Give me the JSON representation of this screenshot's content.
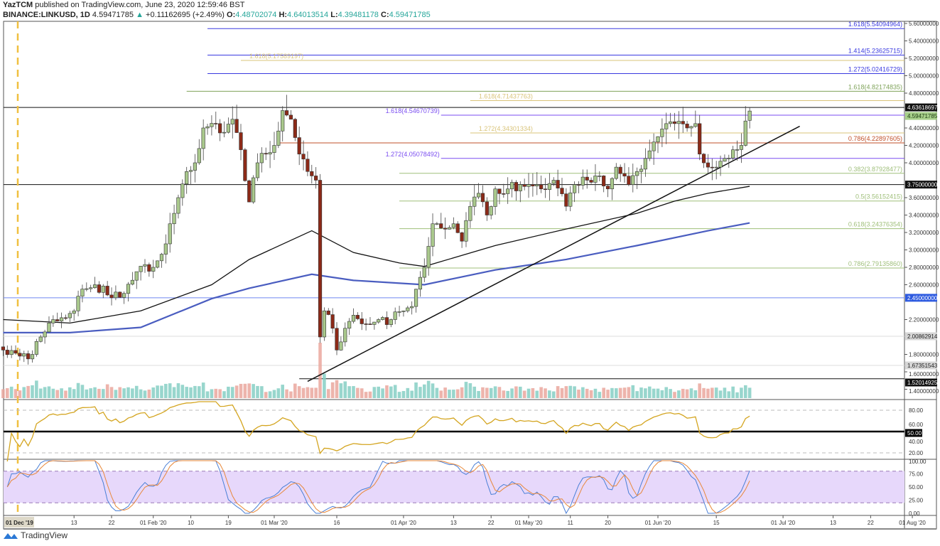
{
  "header": {
    "author": "YazTCM",
    "published": "published on TradingView.com, June 23, 2020 12:59:46 BST",
    "symbol": "BINANCE:LINKUSD, 1D",
    "last": "4.59471785",
    "change": "+0.11162695 (+2.49%)",
    "o_label": "O:",
    "o": "4.48702074",
    "h_label": "H:",
    "h": "4.64013514",
    "l_label": "L:",
    "l": "4.39481178",
    "c_label": "C:",
    "c": "4.59471785"
  },
  "footer": {
    "brand": "TradingView",
    "logo_icon": "tradingview-logo-icon"
  },
  "colors": {
    "up": "#a9c88c",
    "down": "#8c2a18",
    "vol_up": "#86cfc4",
    "vol_down": "#eaa79e",
    "ma100": "#111111",
    "ma200": "#4a5dc0",
    "rsi": "#d4a520",
    "stoch_k": "#4a7fd6",
    "stoch_d": "#e8883a",
    "stoch_band": "#e7d8fb"
  },
  "chart_data": {
    "type": "candlestick",
    "title": "",
    "ylim": [
      1.3,
      5.65
    ],
    "price_ticks": [
      "5.60000000",
      "5.40000000",
      "5.20000000",
      "5.00000000",
      "4.80000000",
      "4.40000000",
      "4.20000000",
      "4.00000000",
      "3.60000000",
      "3.40000000",
      "3.20000000",
      "3.00000000",
      "2.80000000",
      "2.60000000",
      "2.20000000",
      "1.80000000",
      "1.60000000",
      "1.40000000"
    ],
    "price_labels": [
      {
        "value": 4.63618697,
        "text": "4.63618697",
        "bg": "#111111",
        "fg": "#ffffff"
      },
      {
        "value": 4.59471785,
        "text": "4.59471785",
        "bg": "#a7cf8a",
        "fg": "#1b3a10"
      },
      {
        "value": 3.75,
        "text": "3.75000000",
        "bg": "#111111",
        "fg": "#ffffff"
      },
      {
        "value": 2.45,
        "text": "2.45000000",
        "bg": "#2e5be0",
        "fg": "#ffffff"
      },
      {
        "value": 2.00862914,
        "text": "2.00862914",
        "bg": "#d6d6d6",
        "fg": "#222222"
      },
      {
        "value": 1.67351543,
        "text": "1.67351543",
        "bg": "#d6d6d6",
        "fg": "#222222"
      },
      {
        "value": 1.52014925,
        "text": "1.52014925",
        "bg": "#111111",
        "fg": "#ffffff"
      }
    ],
    "time_ticks": [
      {
        "date": "2020-01-13",
        "label": "13"
      },
      {
        "date": "2020-01-22",
        "label": "22"
      },
      {
        "date": "2020-02-01",
        "label": "01 Feb '20"
      },
      {
        "date": "2020-02-10",
        "label": "10"
      },
      {
        "date": "2020-02-19",
        "label": "19"
      },
      {
        "date": "2020-03-01",
        "label": "01 Mar '20"
      },
      {
        "date": "2020-03-16",
        "label": "16"
      },
      {
        "date": "2020-04-01",
        "label": "01 Apr '20"
      },
      {
        "date": "2020-04-13",
        "label": "13"
      },
      {
        "date": "2020-04-22",
        "label": "22"
      },
      {
        "date": "2020-05-01",
        "label": "01 May '20"
      },
      {
        "date": "2020-05-11",
        "label": "11"
      },
      {
        "date": "2020-05-20",
        "label": "20"
      },
      {
        "date": "2020-06-01",
        "label": "01 Jun '20"
      },
      {
        "date": "2020-06-15",
        "label": "15"
      },
      {
        "date": "2020-07-01",
        "label": "01 Jul '20"
      },
      {
        "date": "2020-07-13",
        "label": "13"
      },
      {
        "date": "2020-07-22",
        "label": "22"
      },
      {
        "date": "2020-08-01",
        "label": "01 Aug '20"
      }
    ],
    "cursor_label": "01 Dec '19",
    "closes": [
      [
        "2019-12-27",
        1.85
      ],
      [
        "2019-12-31",
        1.78
      ],
      [
        "2020-01-03",
        1.8
      ],
      [
        "2020-01-05",
        2.0
      ],
      [
        "2020-01-08",
        2.2
      ],
      [
        "2020-01-13",
        2.3
      ],
      [
        "2020-01-15",
        2.55
      ],
      [
        "2020-01-18",
        2.6
      ],
      [
        "2020-01-22",
        2.45
      ],
      [
        "2020-01-25",
        2.5
      ],
      [
        "2020-01-28",
        2.75
      ],
      [
        "2020-02-01",
        2.8
      ],
      [
        "2020-02-03",
        2.95
      ],
      [
        "2020-02-05",
        3.3
      ],
      [
        "2020-02-07",
        3.6
      ],
      [
        "2020-02-09",
        3.9
      ],
      [
        "2020-02-11",
        4.0
      ],
      [
        "2020-02-13",
        4.4
      ],
      [
        "2020-02-16",
        4.45
      ],
      [
        "2020-02-18",
        4.35
      ],
      [
        "2020-02-20",
        4.5
      ],
      [
        "2020-02-22",
        4.15
      ],
      [
        "2020-02-24",
        3.55
      ],
      [
        "2020-02-26",
        4.0
      ],
      [
        "2020-02-28",
        4.1
      ],
      [
        "2020-03-01",
        4.2
      ],
      [
        "2020-03-03",
        4.6
      ],
      [
        "2020-03-05",
        4.5
      ],
      [
        "2020-03-07",
        4.1
      ],
      [
        "2020-03-09",
        3.9
      ],
      [
        "2020-03-11",
        3.8
      ],
      [
        "2020-03-12",
        2.0
      ],
      [
        "2020-03-13",
        2.3
      ],
      [
        "2020-03-15",
        2.1
      ],
      [
        "2020-03-16",
        1.85
      ],
      [
        "2020-03-18",
        2.1
      ],
      [
        "2020-03-20",
        2.25
      ],
      [
        "2020-03-23",
        2.15
      ],
      [
        "2020-03-26",
        2.2
      ],
      [
        "2020-03-29",
        2.2
      ],
      [
        "2020-04-01",
        2.3
      ],
      [
        "2020-04-03",
        2.35
      ],
      [
        "2020-04-06",
        2.8
      ],
      [
        "2020-04-08",
        3.3
      ],
      [
        "2020-04-10",
        3.25
      ],
      [
        "2020-04-13",
        3.3
      ],
      [
        "2020-04-15",
        3.1
      ],
      [
        "2020-04-17",
        3.5
      ],
      [
        "2020-04-19",
        3.65
      ],
      [
        "2020-04-21",
        3.4
      ],
      [
        "2020-04-23",
        3.7
      ],
      [
        "2020-04-26",
        3.7
      ],
      [
        "2020-04-29",
        3.75
      ],
      [
        "2020-05-01",
        3.75
      ],
      [
        "2020-05-04",
        3.7
      ],
      [
        "2020-05-07",
        3.8
      ],
      [
        "2020-05-10",
        3.5
      ],
      [
        "2020-05-12",
        3.75
      ],
      [
        "2020-05-15",
        3.8
      ],
      [
        "2020-05-18",
        3.85
      ],
      [
        "2020-05-20",
        3.7
      ],
      [
        "2020-05-22",
        3.95
      ],
      [
        "2020-05-25",
        3.75
      ],
      [
        "2020-05-27",
        3.9
      ],
      [
        "2020-05-29",
        4.05
      ],
      [
        "2020-06-01",
        4.3
      ],
      [
        "2020-06-03",
        4.45
      ],
      [
        "2020-06-05",
        4.45
      ],
      [
        "2020-06-08",
        4.4
      ],
      [
        "2020-06-10",
        4.45
      ],
      [
        "2020-06-11",
        4.1
      ],
      [
        "2020-06-13",
        3.95
      ],
      [
        "2020-06-15",
        3.95
      ],
      [
        "2020-06-17",
        4.05
      ],
      [
        "2020-06-19",
        4.15
      ],
      [
        "2020-06-21",
        4.2
      ],
      [
        "2020-06-22",
        4.48
      ],
      [
        "2020-06-23",
        4.59471785
      ]
    ],
    "ma100": [
      [
        "2019-12-27",
        2.2
      ],
      [
        "2020-01-12",
        2.16
      ],
      [
        "2020-01-29",
        2.3
      ],
      [
        "2020-02-15",
        2.6
      ],
      [
        "2020-02-24",
        2.89
      ],
      [
        "2020-03-10",
        3.22
      ],
      [
        "2020-03-20",
        2.97
      ],
      [
        "2020-03-31",
        2.85
      ],
      [
        "2020-04-06",
        2.81
      ],
      [
        "2020-04-23",
        3.05
      ],
      [
        "2020-05-10",
        3.24
      ],
      [
        "2020-05-27",
        3.42
      ],
      [
        "2020-06-05",
        3.56
      ],
      [
        "2020-06-13",
        3.65
      ],
      [
        "2020-06-23",
        3.73
      ]
    ],
    "ma200": [
      [
        "2019-12-27",
        2.05
      ],
      [
        "2020-01-12",
        2.05
      ],
      [
        "2020-01-29",
        2.11
      ],
      [
        "2020-02-15",
        2.44
      ],
      [
        "2020-02-24",
        2.56
      ],
      [
        "2020-03-10",
        2.72
      ],
      [
        "2020-03-20",
        2.65
      ],
      [
        "2020-04-06",
        2.6
      ],
      [
        "2020-04-23",
        2.77
      ],
      [
        "2020-05-10",
        2.89
      ],
      [
        "2020-05-27",
        3.05
      ],
      [
        "2020-06-13",
        3.22
      ],
      [
        "2020-06-23",
        3.31
      ]
    ],
    "trendline": [
      [
        "2020-03-09",
        1.49
      ],
      [
        "2020-07-05",
        4.42
      ]
    ],
    "fib_levels": [
      {
        "value": 5.54094964,
        "text": "1.618(5.54094964)",
        "from": "2020-02-14",
        "color": "#3a3ae0",
        "label_at": "right"
      },
      {
        "value": 5.23625715,
        "text": "1.414(5.23625715)",
        "from": "2020-02-14",
        "color": "#3a3ae0",
        "label_at": "right"
      },
      {
        "value": 5.17589197,
        "text": "1.618(5.17589197)",
        "from": "2020-02-22",
        "color": "#d9c47a",
        "label_at": "start"
      },
      {
        "value": 5.02416729,
        "text": "1.272(5.02416729)",
        "from": "2020-02-14",
        "color": "#3a3ae0",
        "label_at": "right"
      },
      {
        "value": 4.82174835,
        "text": "1.618(4.82174835)",
        "from": "2020-02-09",
        "color": "#7fa35a",
        "label_at": "right"
      },
      {
        "value": 4.71437763,
        "text": "1.618(4.71437763)",
        "from": "2020-04-17",
        "color": "#d9c47a",
        "label_at": "start"
      },
      {
        "value": 4.54670739,
        "text": "1.618(4.54670739)",
        "from": "2020-04-10",
        "color": "#7a4df0",
        "label_at": "before"
      },
      {
        "value": 4.34301334,
        "text": "1.272(4.34301334)",
        "from": "2020-04-17",
        "color": "#d9c47a",
        "label_at": "start"
      },
      {
        "value": 4.22897605,
        "text": "0.786(4.22897605)",
        "from": "2020-03-02",
        "color": "#c0502a",
        "label_at": "right"
      },
      {
        "value": 4.05078492,
        "text": "1.272(4.05078492)",
        "from": "2020-04-10",
        "color": "#7a4df0",
        "label_at": "before"
      },
      {
        "value": 3.87928477,
        "text": "0.382(3.87928477)",
        "from": "2020-03-31",
        "color": "#9fbf7a",
        "label_at": "right"
      },
      {
        "value": 3.56152415,
        "text": "0.5(3.56152415)",
        "from": "2020-03-31",
        "color": "#9fbf7a",
        "label_at": "right"
      },
      {
        "value": 3.24376354,
        "text": "0.618(3.24376354)",
        "from": "2020-03-31",
        "color": "#9fbf7a",
        "label_at": "right"
      },
      {
        "value": 2.7913586,
        "text": "0.786(2.79135860)",
        "from": "2020-03-31",
        "color": "#9fbf7a",
        "label_at": "right"
      }
    ],
    "horizontal_lines": [
      {
        "value": 4.63618697,
        "color": "#111111",
        "from": "2019-12-27"
      },
      {
        "value": 3.75,
        "color": "#111111",
        "from": "2019-12-27"
      },
      {
        "value": 2.45,
        "color": "#6f86f0",
        "from": "2019-12-27"
      },
      {
        "value": 2.00862914,
        "color": "#dddddd",
        "from": "2019-12-27"
      },
      {
        "value": 1.67351543,
        "color": "#dddddd",
        "from": "2019-12-27"
      },
      {
        "value": 1.52014925,
        "color": "#111111",
        "from": "2020-03-07"
      }
    ],
    "rsi": {
      "levels": [
        80,
        50,
        20
      ],
      "ticks": [
        "80.00",
        "60.00",
        "40.00",
        "20.00"
      ],
      "mid_label": "50.00"
    },
    "stoch_rsi": {
      "band": [
        20,
        80
      ],
      "ticks": [
        "100.00",
        "75.00",
        "50.00",
        "25.00",
        "0.00"
      ]
    }
  }
}
